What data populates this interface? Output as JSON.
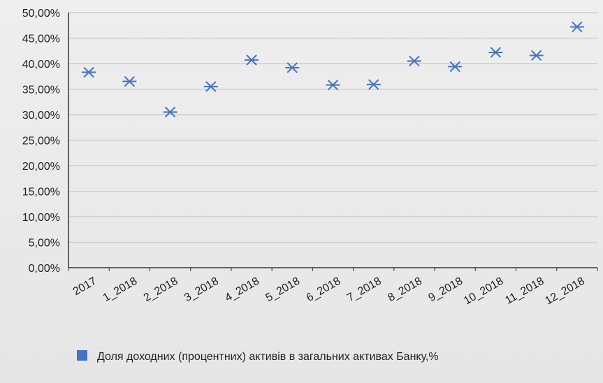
{
  "chart_data": {
    "type": "scatter",
    "title": "",
    "xlabel": "",
    "ylabel": "",
    "categories": [
      "2017",
      "1_2018",
      "2_2018",
      "3_2018",
      "4_2018",
      "5_2018",
      "6_2018",
      "7_2018",
      "8_2018",
      "9_2018",
      "10_2018",
      "11_2018",
      "12_2018"
    ],
    "series": [
      {
        "name": "Доля доходних (процентних) активів в загальних активах Банку,%",
        "values": [
          38.3,
          36.5,
          30.5,
          35.5,
          40.7,
          39.2,
          35.8,
          35.9,
          40.5,
          39.4,
          42.2,
          41.6,
          47.2
        ],
        "color": "#4472c4",
        "marker": "asterisk"
      }
    ],
    "ylim": [
      0,
      50
    ],
    "ytick_step": 5,
    "ytick_labels": [
      "0,00%",
      "5,00%",
      "10,00%",
      "15,00%",
      "20,00%",
      "25,00%",
      "30,00%",
      "35,00%",
      "40,00%",
      "45,00%",
      "50,00%"
    ],
    "grid": true,
    "legend_position": "bottom"
  }
}
